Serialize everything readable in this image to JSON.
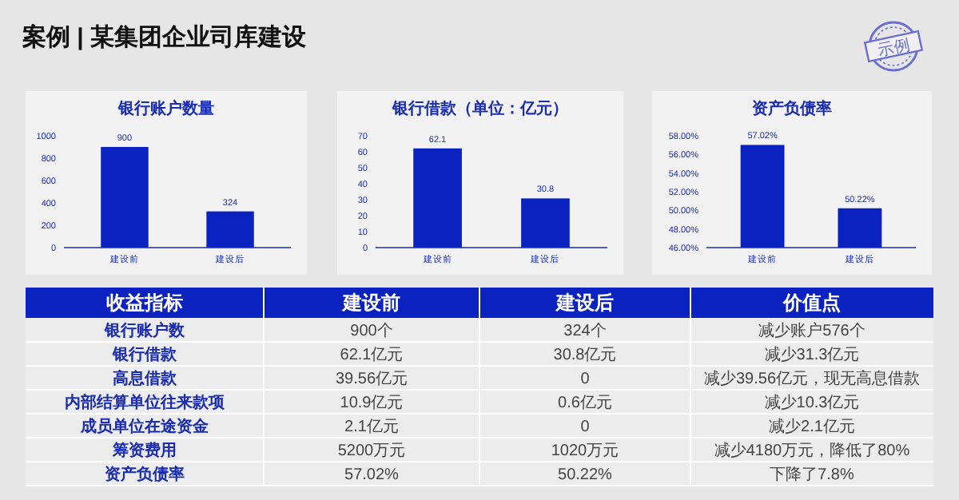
{
  "chart_data": [
    {
      "type": "other",
      "title": "案例 | 某集团企业司库建设",
      "annotations": [
        "示例"
      ]
    },
    {
      "type": "bar",
      "title": "银行账户数量",
      "categories": [
        "建设前",
        "建设后"
      ],
      "values": [
        900,
        324
      ],
      "color": "#0a22c0",
      "ylim": [
        0,
        1000
      ],
      "yticks": [
        0,
        200,
        400,
        600,
        800,
        1000
      ],
      "data_labels": true
    },
    {
      "type": "bar",
      "title": "银行借款（单位：亿元）",
      "categories": [
        "建设前",
        "建设后"
      ],
      "values": [
        62.1,
        30.8
      ],
      "color": "#0a22c0",
      "ylim": [
        0,
        70
      ],
      "yticks": [
        0,
        10,
        20,
        30,
        40,
        50,
        60,
        70
      ],
      "data_labels": true
    },
    {
      "type": "bar",
      "title": "资产负债率",
      "categories": [
        "建设前",
        "建设后"
      ],
      "values": [
        57.02,
        50.22
      ],
      "color": "#0a22c0",
      "ylim": [
        46,
        58
      ],
      "yticks": [
        {
          "value": 46,
          "label": "46.00%"
        },
        {
          "value": 48,
          "label": "48.00%"
        },
        {
          "value": 50,
          "label": "50.00%"
        },
        {
          "value": 52,
          "label": "52.00%"
        },
        {
          "value": 54,
          "label": "54.00%"
        },
        {
          "value": 56,
          "label": "56.00%"
        },
        {
          "value": 58,
          "label": "58.00%"
        }
      ],
      "value_labels": [
        "57.02%",
        "50.22%"
      ]
    },
    {
      "type": "other",
      "annotations": [
        "收益指标",
        "建设前",
        "建设后",
        "价值点",
        "银行账户数",
        "900个",
        "324个",
        "减少账户576个",
        "银行借款",
        "62.1亿元",
        "30.8亿元",
        "减少31.3亿元",
        "高息借款",
        "39.56亿元",
        "0",
        "减少39.56亿元，现无高息借款",
        "内部结算单位往来款项",
        "10.9亿元",
        "0.6亿元",
        "减少10.3亿元",
        "成员单位在途资金",
        "2.1亿元",
        "0",
        "减少2.1亿元",
        "筹资费用",
        "5200万元",
        "1020万元",
        "减少4180万元，降低了80%",
        "资产负债率",
        "57.02%",
        "50.22%",
        "下降了7.8%"
      ]
    }
  ]
}
